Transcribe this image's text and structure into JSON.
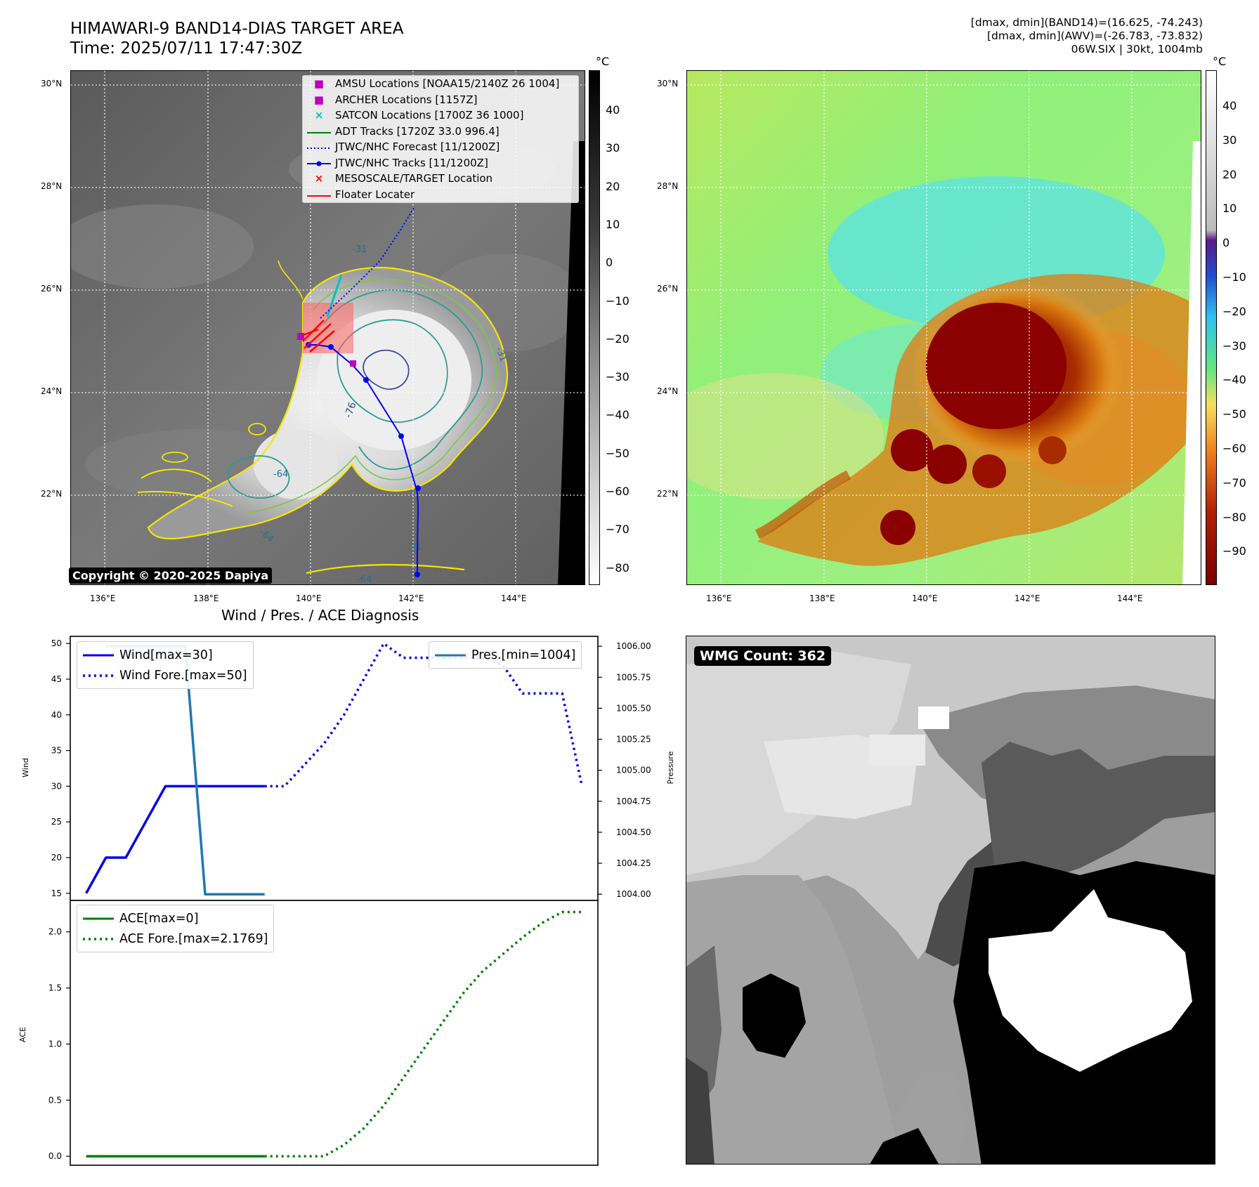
{
  "header": {
    "title": "HIMAWARI-9 BAND14-DIAS TARGET AREA",
    "time": "Time: 2025/07/11 17:47:30Z",
    "dmax_band14": "[dmax, dmin](BAND14)=(16.625, -74.243)",
    "dmax_awv": "[dmax, dmin](AWV)=(-26.783, -73.832)",
    "storm_info": "06W.SIX | 30kt, 1004mb"
  },
  "map_axes": {
    "lat_labels": [
      "30°N",
      "28°N",
      "26°N",
      "24°N",
      "22°N"
    ],
    "lon_labels": [
      "136°E",
      "138°E",
      "140°E",
      "142°E",
      "144°E"
    ]
  },
  "ir_colorbar": {
    "unit": "°C",
    "ticks": [
      "40",
      "30",
      "20",
      "10",
      "0",
      "−10",
      "−20",
      "−30",
      "−40",
      "−50",
      "−60",
      "−70",
      "−80"
    ]
  },
  "wv_colorbar": {
    "unit": "°C",
    "ticks": [
      "40",
      "30",
      "20",
      "10",
      "0",
      "−10",
      "−20",
      "−30",
      "−40",
      "−50",
      "−60",
      "−70",
      "−80",
      "−90"
    ]
  },
  "map_legend": [
    {
      "label": "AMSU Locations [NOAA15/2140Z 26 1004]",
      "symbol": "square",
      "color": "#c000c0"
    },
    {
      "label": "ARCHER Locations [1157Z]",
      "symbol": "square",
      "color": "#c000c0"
    },
    {
      "label": "SATCON Locations [1700Z 36 1000]",
      "symbol": "x",
      "color": "#00bfbf"
    },
    {
      "label": "ADT Tracks [1720Z 33.0 996.4]",
      "symbol": "line",
      "color": "#008000"
    },
    {
      "label": "JTWC/NHC Forecast [11/1200Z]",
      "symbol": "dotted",
      "color": "#0000ff"
    },
    {
      "label": "JTWC/NHC Tracks [11/1200Z]",
      "symbol": "line-dot",
      "color": "#0000ff"
    },
    {
      "label": "MESOSCALE/TARGET Location",
      "symbol": "x",
      "color": "#ff0000"
    },
    {
      "label": "Floater Locater",
      "symbol": "line",
      "color": "#ff0000"
    }
  ],
  "contour_labels": [
    "-31",
    "-31",
    "-76",
    "-64",
    "-64",
    "-31",
    "-64"
  ],
  "copyright": "Copyright © 2020-2025 Dapiya",
  "wmg_count": "WMG Count: 362",
  "diagnosis_title": "Wind / Pres. / ACE Diagnosis",
  "colors": {
    "wind": "#0000ee",
    "pressure": "#1f77b4",
    "ace": "#008000",
    "track": "#0000ff",
    "contour_yellow": "#f5e600",
    "contour_teal": "#2a9d8f",
    "contour_navy": "#3b4b9a"
  },
  "chart_data": [
    {
      "type": "line",
      "ylabel": "Wind",
      "y2label": "Pressure",
      "ylim": [
        14,
        51
      ],
      "y2lim": [
        1003.95,
        1006.08
      ],
      "yticks": [
        "15",
        "20",
        "25",
        "30",
        "35",
        "40",
        "45",
        "50"
      ],
      "y2ticks": [
        "1004.00",
        "1004.25",
        "1004.50",
        "1004.75",
        "1005.00",
        "1005.25",
        "1005.50",
        "1005.75",
        "1006.00"
      ],
      "series": [
        {
          "name": "Wind[max=30]",
          "style": "solid",
          "x": [
            0,
            1,
            2,
            3,
            4,
            5,
            6,
            7,
            8,
            9
          ],
          "values": [
            15,
            20,
            20,
            25,
            30,
            30,
            30,
            30,
            30,
            30
          ]
        },
        {
          "name": "Wind Fore.[max=50]",
          "style": "dotted",
          "x": [
            9,
            10,
            11,
            12,
            13,
            14,
            15,
            16,
            17,
            18,
            19,
            20,
            21,
            22,
            23,
            24,
            25
          ],
          "values": [
            30,
            30,
            33,
            36,
            40,
            45,
            50,
            48,
            48,
            48,
            48,
            48,
            47,
            43,
            43,
            43,
            30
          ]
        },
        {
          "name": "Pres.[min=1004]",
          "axis": "right",
          "style": "solid",
          "x": [
            1,
            2,
            3,
            4,
            5,
            6,
            7,
            8,
            9
          ],
          "values": [
            1006,
            1006,
            1006,
            1006,
            1006,
            1004,
            1004,
            1004,
            1004
          ]
        }
      ]
    },
    {
      "type": "line",
      "ylabel": "ACE",
      "ylim": [
        -0.08,
        2.28
      ],
      "yticks": [
        "0.0",
        "0.5",
        "1.0",
        "1.5",
        "2.0"
      ],
      "series": [
        {
          "name": "ACE[max=0]",
          "style": "solid",
          "x": [
            0,
            9
          ],
          "values": [
            0,
            0
          ]
        },
        {
          "name": "ACE Fore.[max=2.1769]",
          "style": "dotted",
          "x": [
            9,
            12,
            13,
            14,
            15,
            16,
            17,
            18,
            19,
            20,
            21,
            22,
            23,
            24,
            25
          ],
          "values": [
            0,
            0,
            0.1,
            0.25,
            0.45,
            0.7,
            0.95,
            1.2,
            1.45,
            1.65,
            1.8,
            1.95,
            2.08,
            2.1769,
            2.1769
          ]
        }
      ]
    }
  ]
}
